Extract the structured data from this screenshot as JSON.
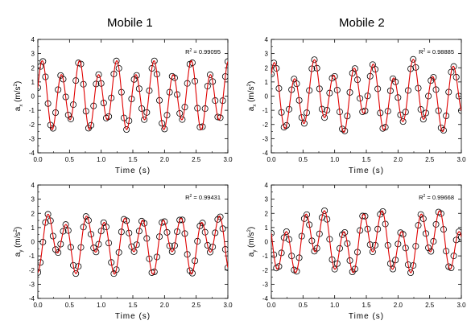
{
  "column_titles": [
    "Mobile 1",
    "Mobile 2"
  ],
  "colors": {
    "fit": "#e00000",
    "data": "#000000"
  },
  "chart_data": [
    {
      "type": "scatter",
      "panel": "top-left",
      "title": "Mobile 1",
      "xlabel": "Time (s)",
      "ylabel": {
        "base": "a",
        "sub": "x",
        "unit": "(m/s",
        "sup": "2",
        "close": ")"
      },
      "xlim": [
        0,
        3
      ],
      "ylim": [
        -4,
        4
      ],
      "xticks": [
        "0.0",
        "0.5",
        "1.0",
        "1.5",
        "2.0",
        "2.5",
        "3.0"
      ],
      "yticks": [
        "-4",
        "-3",
        "-2",
        "-1",
        "0",
        "1",
        "2",
        "3",
        "4"
      ],
      "annotation": {
        "prefix": "R",
        "sup": "2",
        "value": " = 0.99095"
      },
      "series": [
        {
          "marker": "circle",
          "role": "data",
          "x": [
            0.0,
            0.04,
            0.08,
            0.12,
            0.16,
            0.2,
            0.24,
            0.28,
            0.32,
            0.36,
            0.4,
            0.44,
            0.48,
            0.52,
            0.56,
            0.6,
            0.64,
            0.68,
            0.72,
            0.76,
            0.8,
            0.84,
            0.88,
            0.92,
            0.96,
            1.0,
            1.04,
            1.08,
            1.12,
            1.16,
            1.2,
            1.24,
            1.28,
            1.32,
            1.36,
            1.4,
            1.44,
            1.48,
            1.52,
            1.56,
            1.6,
            1.64,
            1.68,
            1.72,
            1.76,
            1.8,
            1.84,
            1.88,
            1.92,
            1.96,
            2.0,
            2.04,
            2.08,
            2.12,
            2.16,
            2.2,
            2.24,
            2.28,
            2.32,
            2.36,
            2.4,
            2.44,
            2.48,
            2.52,
            2.56,
            2.6,
            2.64,
            2.68,
            2.72,
            2.76,
            2.8,
            2.84,
            2.88,
            2.92,
            2.96,
            3.0
          ]
        },
        {
          "line": "solid",
          "role": "fit"
        }
      ],
      "components": [
        [
          2.0,
          3.4,
          0
        ],
        [
          0.6,
          1.7,
          1.4
        ]
      ]
    },
    {
      "type": "scatter",
      "panel": "top-right",
      "title": "Mobile 2",
      "xlabel": "Time (s)",
      "ylabel": {
        "base": "a",
        "sub": "x",
        "unit": "(m/s",
        "sup": "2",
        "close": ")"
      },
      "xlim": [
        0,
        3
      ],
      "ylim": [
        -4,
        4
      ],
      "xticks": [
        "0.0",
        "0.5",
        "1.0",
        "1.5",
        "2.0",
        "2.5",
        "3.0"
      ],
      "yticks": [
        "-4",
        "-3",
        "-2",
        "-1",
        "0",
        "1",
        "2",
        "3",
        "4"
      ],
      "annotation": {
        "prefix": "R",
        "sup": "2",
        "value": " = 0.98885"
      },
      "series": [
        {
          "marker": "circle",
          "role": "data",
          "x": [
            0.0,
            0.04,
            0.08,
            0.12,
            0.16,
            0.2,
            0.24,
            0.28,
            0.32,
            0.36,
            0.4,
            0.44,
            0.48,
            0.52,
            0.56,
            0.6,
            0.64,
            0.68,
            0.72,
            0.76,
            0.8,
            0.84,
            0.88,
            0.92,
            0.96,
            1.0,
            1.04,
            1.08,
            1.12,
            1.16,
            1.2,
            1.24,
            1.28,
            1.32,
            1.36,
            1.4,
            1.44,
            1.48,
            1.52,
            1.56,
            1.6,
            1.64,
            1.68,
            1.72,
            1.76,
            1.8,
            1.84,
            1.88,
            1.92,
            1.96,
            2.0,
            2.04,
            2.08,
            2.12,
            2.16,
            2.2,
            2.24,
            2.28,
            2.32,
            2.36,
            2.4,
            2.44,
            2.48,
            2.52,
            2.56,
            2.6,
            2.64,
            2.68,
            2.72,
            2.76,
            2.8,
            2.84,
            2.88,
            2.92,
            2.96,
            3.0
          ]
        },
        {
          "line": "solid",
          "role": "fit"
        }
      ],
      "components": [
        [
          1.9,
          3.2,
          0.5
        ],
        [
          0.7,
          1.3,
          2.0
        ]
      ]
    },
    {
      "type": "scatter",
      "panel": "bottom-left",
      "xlabel": "Time (s)",
      "ylabel": {
        "base": "a",
        "sub": "y",
        "unit": "(m/s",
        "sup": "2",
        "close": ")"
      },
      "xlim": [
        0,
        3
      ],
      "ylim": [
        -4,
        4
      ],
      "xticks": [
        "0.0",
        "0.5",
        "1.0",
        "1.5",
        "2.0",
        "2.5",
        "3.0"
      ],
      "yticks": [
        "-4",
        "-3",
        "-2",
        "-1",
        "0",
        "1",
        "2",
        "3",
        "4"
      ],
      "annotation": {
        "prefix": "R",
        "sup": "2",
        "value": " = 0.99431"
      },
      "series": [
        {
          "marker": "circle",
          "role": "data",
          "x": [
            0.0,
            0.04,
            0.08,
            0.12,
            0.16,
            0.2,
            0.24,
            0.28,
            0.32,
            0.36,
            0.4,
            0.44,
            0.48,
            0.52,
            0.56,
            0.6,
            0.64,
            0.68,
            0.72,
            0.76,
            0.8,
            0.84,
            0.88,
            0.92,
            0.96,
            1.0,
            1.04,
            1.08,
            1.12,
            1.16,
            1.2,
            1.24,
            1.28,
            1.32,
            1.36,
            1.4,
            1.44,
            1.48,
            1.52,
            1.56,
            1.6,
            1.64,
            1.68,
            1.72,
            1.76,
            1.8,
            1.84,
            1.88,
            1.92,
            1.96,
            2.0,
            2.04,
            2.08,
            2.12,
            2.16,
            2.2,
            2.24,
            2.28,
            2.32,
            2.36,
            2.4,
            2.44,
            2.48,
            2.52,
            2.56,
            2.6,
            2.64,
            2.68,
            2.72,
            2.76,
            2.8,
            2.84,
            2.88,
            2.92,
            2.96,
            3.0
          ]
        },
        {
          "line": "solid",
          "role": "fit"
        }
      ],
      "components": [
        [
          1.5,
          3.3,
          -1.57
        ],
        [
          0.8,
          1.6,
          -1.0
        ]
      ]
    },
    {
      "type": "scatter",
      "panel": "bottom-right",
      "xlabel": "Time (s)",
      "ylabel": {
        "base": "a",
        "sub": "y",
        "unit": "(m/s",
        "sup": "2",
        "close": ")"
      },
      "xlim": [
        0,
        3
      ],
      "ylim": [
        -4,
        4
      ],
      "xticks": [
        "0.0",
        "0.5",
        "1.0",
        "1.5",
        "2.0",
        "2.5",
        "3.0"
      ],
      "yticks": [
        "-4",
        "-3",
        "-2",
        "-1",
        "0",
        "1",
        "2",
        "3",
        "4"
      ],
      "annotation": {
        "prefix": "R",
        "sup": "2",
        "value": " = 0.99668"
      },
      "series": [
        {
          "marker": "circle",
          "role": "data",
          "x": [
            0.0,
            0.04,
            0.08,
            0.12,
            0.16,
            0.2,
            0.24,
            0.28,
            0.32,
            0.36,
            0.4,
            0.44,
            0.48,
            0.52,
            0.56,
            0.6,
            0.64,
            0.68,
            0.72,
            0.76,
            0.8,
            0.84,
            0.88,
            0.92,
            0.96,
            1.0,
            1.04,
            1.08,
            1.12,
            1.16,
            1.2,
            1.24,
            1.28,
            1.32,
            1.36,
            1.4,
            1.44,
            1.48,
            1.52,
            1.56,
            1.6,
            1.64,
            1.68,
            1.72,
            1.76,
            1.8,
            1.84,
            1.88,
            1.92,
            1.96,
            2.0,
            2.04,
            2.08,
            2.12,
            2.16,
            2.2,
            2.24,
            2.28,
            2.32,
            2.36,
            2.4,
            2.44,
            2.48,
            2.52,
            2.56,
            2.6,
            2.64,
            2.68,
            2.72,
            2.76,
            2.8,
            2.84,
            2.88,
            2.92,
            2.96,
            3.0
          ]
        },
        {
          "line": "solid",
          "role": "fit"
        }
      ],
      "components": [
        [
          1.6,
          3.3,
          2.9
        ],
        [
          0.9,
          1.1,
          2.9
        ]
      ]
    }
  ]
}
